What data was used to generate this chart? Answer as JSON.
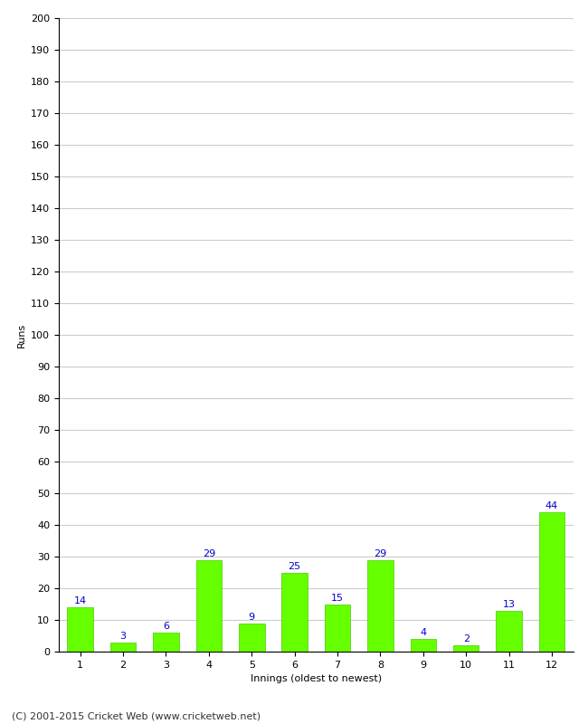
{
  "title": "",
  "xlabel": "Innings (oldest to newest)",
  "ylabel": "Runs",
  "categories": [
    1,
    2,
    3,
    4,
    5,
    6,
    7,
    8,
    9,
    10,
    11,
    12
  ],
  "values": [
    14,
    3,
    6,
    29,
    9,
    25,
    15,
    29,
    4,
    2,
    13,
    44
  ],
  "bar_color": "#66ff00",
  "bar_edge_color": "#44cc00",
  "label_color": "#0000cc",
  "ylim": [
    0,
    200
  ],
  "yticks": [
    0,
    10,
    20,
    30,
    40,
    50,
    60,
    70,
    80,
    90,
    100,
    110,
    120,
    130,
    140,
    150,
    160,
    170,
    180,
    190,
    200
  ],
  "grid_color": "#cccccc",
  "background_color": "#ffffff",
  "fig_background_color": "#ffffff",
  "footer_text": "(C) 2001-2015 Cricket Web (www.cricketweb.net)",
  "label_fontsize": 8,
  "axis_label_fontsize": 8,
  "tick_fontsize": 8,
  "footer_fontsize": 8
}
